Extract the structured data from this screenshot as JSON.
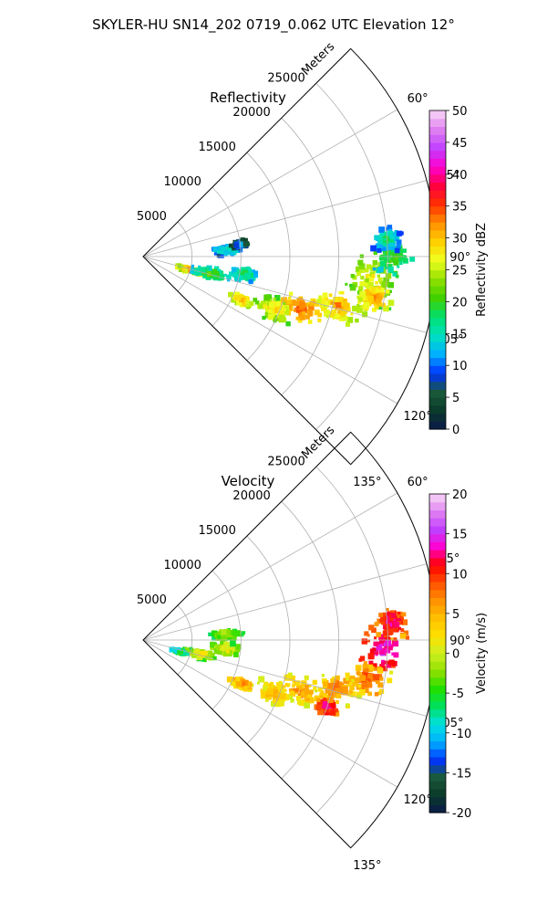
{
  "figure": {
    "suptitle": "SKYLER-HU  SN14_202  0719_0.062 UTC Elevation 12°"
  },
  "chart_data": [
    {
      "type": "heatmap",
      "projection": "polar-sector",
      "title": "Reflectivity",
      "radial_label": "Meters",
      "radial_ticks": [
        5000,
        10000,
        15000,
        20000,
        25000
      ],
      "radial_range": [
        0,
        30000
      ],
      "azimuth_ticks": [
        "60°",
        "75°",
        "90°",
        "105°",
        "120°",
        "135°"
      ],
      "azimuth_range_deg": [
        45,
        135
      ],
      "grid": true,
      "colorbar": {
        "label": "Reflectivity dBZ",
        "min": 0,
        "max": 50,
        "ticks": [
          0,
          5,
          10,
          15,
          20,
          25,
          30,
          35,
          40,
          45,
          50
        ],
        "stops": [
          "#0b1a4a",
          "#0b3a2a",
          "#1a5a3a",
          "#0033ff",
          "#00b0ff",
          "#00e0c0",
          "#00e070",
          "#40d000",
          "#90e000",
          "#f0ff20",
          "#ffd000",
          "#ff9000",
          "#ff3000",
          "#ff0040",
          "#ff00d0",
          "#c040ff",
          "#e080f0",
          "#f8d8f8"
        ]
      },
      "echoes": [
        {
          "az": 96,
          "r": 23500,
          "value": 28,
          "sa": 9,
          "sr": 3500
        },
        {
          "az": 100,
          "r": 24000,
          "value": 33,
          "sa": 5,
          "sr": 2200
        },
        {
          "az": 90,
          "r": 25500,
          "value": 22,
          "sa": 6,
          "sr": 2500
        },
        {
          "az": 86,
          "r": 25000,
          "value": 18,
          "sa": 4,
          "sr": 2000
        },
        {
          "az": 104,
          "r": 20500,
          "value": 32,
          "sa": 6,
          "sr": 3000
        },
        {
          "az": 108,
          "r": 17000,
          "value": 35,
          "sa": 6,
          "sr": 3200
        },
        {
          "az": 112,
          "r": 14500,
          "value": 30,
          "sa": 6,
          "sr": 2500
        },
        {
          "az": 114,
          "r": 11000,
          "value": 33,
          "sa": 3,
          "sr": 1500
        },
        {
          "az": 100,
          "r": 10500,
          "value": 20,
          "sa": 5,
          "sr": 2000
        },
        {
          "az": 106,
          "r": 5000,
          "value": 33,
          "sa": 3,
          "sr": 1800
        },
        {
          "az": 104,
          "r": 7000,
          "value": 22,
          "sa": 6,
          "sr": 2500
        },
        {
          "az": 86,
          "r": 8500,
          "value": 18,
          "sa": 4,
          "sr": 2000
        },
        {
          "az": 83,
          "r": 10000,
          "value": 12,
          "sa": 3,
          "sr": 1200
        }
      ]
    },
    {
      "type": "heatmap",
      "projection": "polar-sector",
      "title": "Velocity",
      "radial_label": "Meters",
      "radial_ticks": [
        5000,
        10000,
        15000,
        20000,
        25000
      ],
      "radial_range": [
        0,
        30000
      ],
      "azimuth_ticks": [
        "60°",
        "75°",
        "90°",
        "105°",
        "120°",
        "135°"
      ],
      "azimuth_range_deg": [
        45,
        135
      ],
      "grid": true,
      "colorbar": {
        "label": "Velocity (m/s)",
        "min": -20,
        "max": 20,
        "ticks": [
          -20,
          -15,
          -10,
          -5,
          0,
          5,
          10,
          15,
          20
        ],
        "stops": [
          "#0b1a4a",
          "#0b3a2a",
          "#1a5a3a",
          "#0033ff",
          "#00b0ff",
          "#00e0e0",
          "#00e060",
          "#20e000",
          "#90e000",
          "#ccf020",
          "#ffe000",
          "#ffc000",
          "#ff9000",
          "#ff5000",
          "#ff0000",
          "#ff00d0",
          "#c040ff",
          "#e080f0",
          "#f8d8f8"
        ]
      },
      "echoes": [
        {
          "az": 92,
          "r": 24500,
          "value": 15,
          "sa": 8,
          "sr": 3000
        },
        {
          "az": 86,
          "r": 25500,
          "value": 14,
          "sa": 4,
          "sr": 1800
        },
        {
          "az": 100,
          "r": 23500,
          "value": 10,
          "sa": 6,
          "sr": 2500
        },
        {
          "az": 104,
          "r": 20500,
          "value": 8,
          "sa": 6,
          "sr": 3000
        },
        {
          "az": 108,
          "r": 17000,
          "value": 7,
          "sa": 6,
          "sr": 3200
        },
        {
          "az": 112,
          "r": 14500,
          "value": 6,
          "sa": 6,
          "sr": 2500
        },
        {
          "az": 114,
          "r": 11000,
          "value": 9,
          "sa": 3,
          "sr": 1500
        },
        {
          "az": 110,
          "r": 20000,
          "value": 14,
          "sa": 3,
          "sr": 1500
        },
        {
          "az": 104,
          "r": 6000,
          "value": 2,
          "sa": 6,
          "sr": 2500
        },
        {
          "az": 96,
          "r": 8500,
          "value": 3,
          "sa": 5,
          "sr": 2000
        },
        {
          "az": 86,
          "r": 8500,
          "value": 1,
          "sa": 4,
          "sr": 2000
        },
        {
          "az": 108,
          "r": 4000,
          "value": -3,
          "sa": 2,
          "sr": 1000
        }
      ]
    }
  ]
}
